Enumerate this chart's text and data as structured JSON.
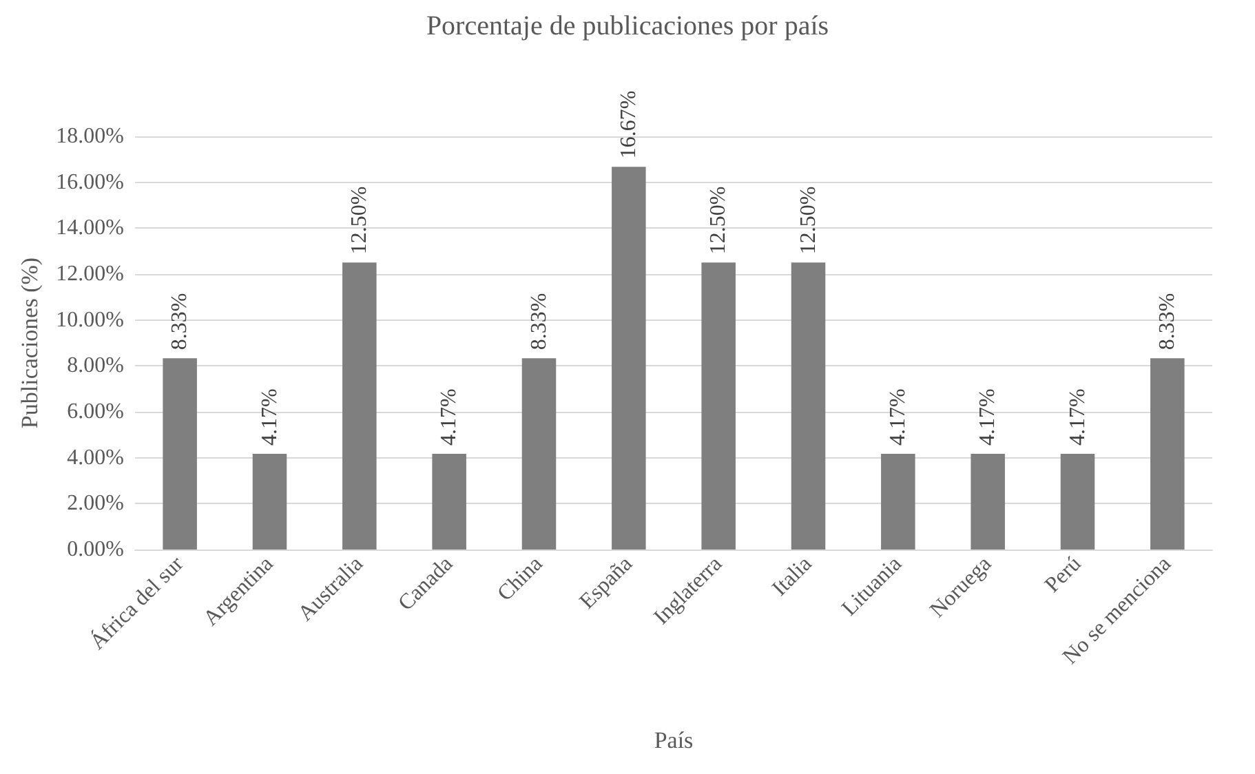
{
  "chart_data": {
    "type": "bar",
    "title": "Porcentaje de publicaciones por país",
    "xlabel": "País",
    "ylabel": "Publicaciones (%)",
    "categories": [
      "África del sur",
      "Argentina",
      "Australia",
      "Canada",
      "China",
      "España",
      "Inglaterra",
      "Italia",
      "Lituania",
      "Noruega",
      "Perú",
      "No se menciona"
    ],
    "values": [
      8.33,
      4.17,
      12.5,
      4.17,
      8.33,
      16.67,
      12.5,
      12.5,
      4.17,
      4.17,
      4.17,
      8.33
    ],
    "value_labels": [
      "8.33%",
      "4.17%",
      "12.50%",
      "4.17%",
      "8.33%",
      "16.67%",
      "12.50%",
      "12.50%",
      "4.17%",
      "4.17%",
      "4.17%",
      "8.33%"
    ],
    "color": "#7f7f7f",
    "ylim": [
      0,
      18
    ],
    "yticks": [
      {
        "value": 0,
        "label": "0.00%"
      },
      {
        "value": 2,
        "label": "2.00%"
      },
      {
        "value": 4,
        "label": "4.00%"
      },
      {
        "value": 6,
        "label": "6.00%"
      },
      {
        "value": 8,
        "label": "8.00%"
      },
      {
        "value": 10,
        "label": "10.00%"
      },
      {
        "value": 12,
        "label": "12.00%"
      },
      {
        "value": 14,
        "label": "14.00%"
      },
      {
        "value": 16,
        "label": "16.00%"
      },
      {
        "value": 18,
        "label": "18.00%"
      }
    ],
    "grid": "y"
  }
}
